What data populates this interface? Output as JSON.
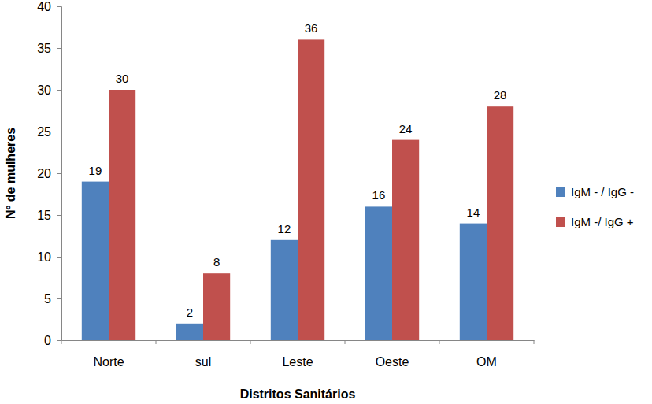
{
  "chart_data": {
    "type": "bar",
    "x_label": "Distritos Sanitários",
    "y_label": "Nº de mulheres",
    "categories": [
      "Norte",
      "sul",
      "Leste",
      "Oeste",
      "OM"
    ],
    "series": [
      {
        "name": "IgM - / IgG -",
        "color": "#4f81bd",
        "values": [
          19,
          2,
          12,
          16,
          14
        ]
      },
      {
        "name": "IgM -/ IgG +",
        "color": "#c0504d",
        "values": [
          30,
          8,
          36,
          24,
          28
        ]
      }
    ],
    "ylim": [
      0,
      40
    ],
    "yticks": [
      0,
      5,
      10,
      15,
      20,
      25,
      30,
      35,
      40
    ],
    "grid": false,
    "legend": "right",
    "data_labels": true
  }
}
